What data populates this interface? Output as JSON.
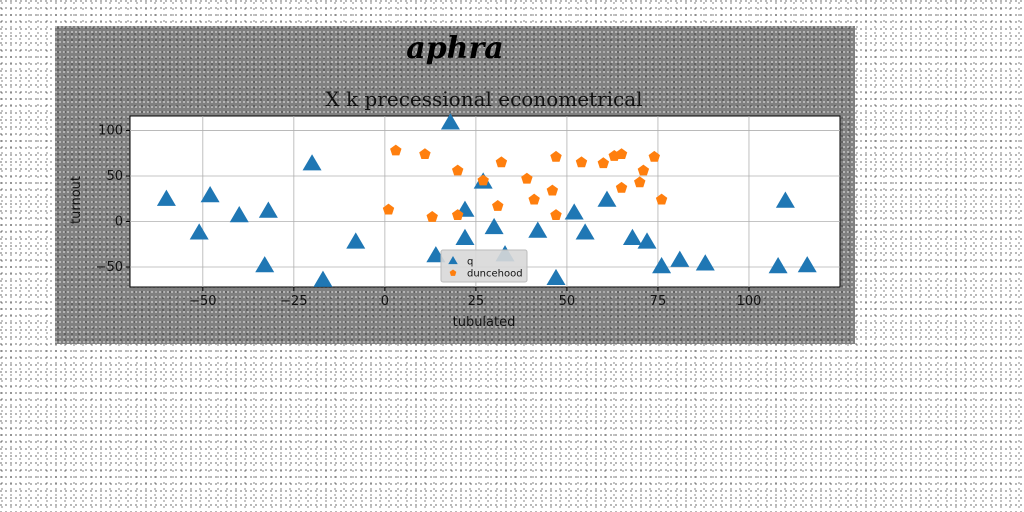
{
  "chart_data": {
    "type": "scatter",
    "suptitle": "aphra",
    "title": "X k precessional econometrical",
    "xlabel": "tubulated",
    "ylabel": "turnout",
    "xlim": [
      -70,
      125
    ],
    "ylim": [
      -72,
      116
    ],
    "xticks": [
      -50,
      -25,
      0,
      25,
      50,
      75,
      100
    ],
    "xtick_labels": [
      "−50",
      "−25",
      "0",
      "25",
      "50",
      "75",
      "100"
    ],
    "yticks": [
      -50,
      0,
      50,
      100
    ],
    "ytick_labels": [
      "−50",
      "0",
      "50",
      "100"
    ],
    "grid": true,
    "legend_position": "bottom-center",
    "series": [
      {
        "name": "q",
        "marker": "triangle",
        "color": "#1f77b4",
        "points": [
          [
            -60,
            24
          ],
          [
            -51,
            -13
          ],
          [
            -48,
            28
          ],
          [
            -40,
            6
          ],
          [
            -33,
            -49
          ],
          [
            -32,
            11
          ],
          [
            -20,
            63
          ],
          [
            -17,
            -65
          ],
          [
            -8,
            -23
          ],
          [
            14,
            -38
          ],
          [
            18,
            108
          ],
          [
            22,
            12
          ],
          [
            22,
            -19
          ],
          [
            27,
            43
          ],
          [
            30,
            -7
          ],
          [
            33,
            -37
          ],
          [
            42,
            -11
          ],
          [
            47,
            -63
          ],
          [
            52,
            9
          ],
          [
            55,
            -13
          ],
          [
            61,
            23
          ],
          [
            68,
            -19
          ],
          [
            72,
            -23
          ],
          [
            76,
            -50
          ],
          [
            81,
            -43
          ],
          [
            88,
            -47
          ],
          [
            108,
            -50
          ],
          [
            110,
            22
          ],
          [
            116,
            -49
          ]
        ]
      },
      {
        "name": "duncehood",
        "marker": "pentagon",
        "color": "#ff7f0e",
        "points": [
          [
            1,
            13
          ],
          [
            3,
            78
          ],
          [
            11,
            74
          ],
          [
            13,
            5
          ],
          [
            20,
            7
          ],
          [
            20,
            56
          ],
          [
            27,
            45
          ],
          [
            31,
            17
          ],
          [
            32,
            65
          ],
          [
            39,
            47
          ],
          [
            41,
            24
          ],
          [
            46,
            34
          ],
          [
            47,
            71
          ],
          [
            47,
            7
          ],
          [
            54,
            65
          ],
          [
            60,
            64
          ],
          [
            63,
            72
          ],
          [
            65,
            74
          ],
          [
            65,
            37
          ],
          [
            70,
            43
          ],
          [
            71,
            56
          ],
          [
            74,
            71
          ],
          [
            76,
            24
          ]
        ]
      }
    ]
  }
}
